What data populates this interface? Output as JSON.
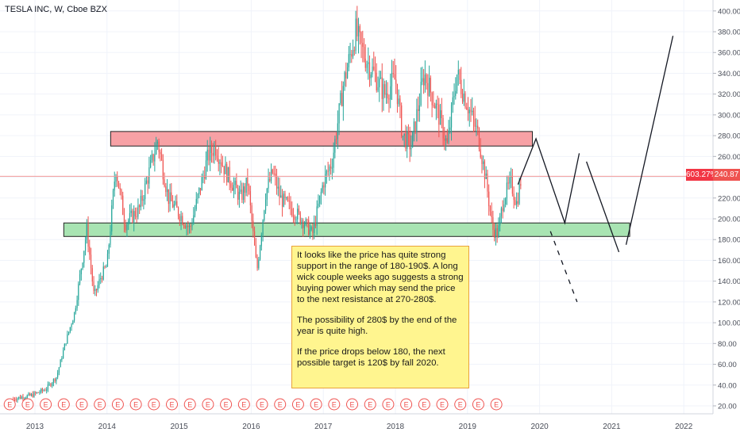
{
  "header": {
    "title": "TESLA INC, W, Cboe BZX"
  },
  "badges": {
    "percent": "603.27%",
    "price": "240.87"
  },
  "note": {
    "p1": "It looks like the price has quite strong support in the range of 180-190$.  A long wick couple weeks ago suggests a strong buying power which may send the price to the next resistance at 270-280$.",
    "p2": "The possibility of 280$ by the end of the year is quite high.",
    "p3": "If the price drops below 180, the next possible target is 120$ by fall 2020."
  },
  "colors": {
    "up": "#26a69a",
    "down": "#ef5350",
    "resistance_fill": "#f7a1a5",
    "support_fill": "#a8e4b2",
    "price_line": "#f29a9a",
    "earnings": "#ef5350",
    "projection": "#131722"
  },
  "chart_data": {
    "type": "candlestick",
    "title": "TESLA INC, W, Cboe BZX",
    "ylim": [
      10,
      410
    ],
    "y_ticks": [
      "400.00",
      "380.00",
      "360.00",
      "340.00",
      "320.00",
      "300.00",
      "280.00",
      "260.00",
      "240.00",
      "220.00",
      "200.00",
      "180.00",
      "160.00",
      "140.00",
      "120.00",
      "100.00",
      "80.00",
      "60.00",
      "40.00",
      "20.00"
    ],
    "x_ticks": [
      "2013",
      "2014",
      "2015",
      "2016",
      "2017",
      "2018",
      "2019",
      "2020",
      "2021",
      "2022"
    ],
    "last_price": 240.87,
    "price_path": [
      [
        2012.7,
        27
      ],
      [
        2012.95,
        30
      ],
      [
        2013.15,
        36
      ],
      [
        2013.3,
        48
      ],
      [
        2013.42,
        80
      ],
      [
        2013.55,
        110
      ],
      [
        2013.72,
        190
      ],
      [
        2013.82,
        125
      ],
      [
        2013.92,
        145
      ],
      [
        2014.0,
        155
      ],
      [
        2014.12,
        250
      ],
      [
        2014.25,
        195
      ],
      [
        2014.45,
        210
      ],
      [
        2014.7,
        275
      ],
      [
        2014.85,
        220
      ],
      [
        2015.0,
        205
      ],
      [
        2015.15,
        190
      ],
      [
        2015.4,
        260
      ],
      [
        2015.5,
        270
      ],
      [
        2015.65,
        245
      ],
      [
        2015.85,
        220
      ],
      [
        2015.95,
        235
      ],
      [
        2016.08,
        150
      ],
      [
        2016.2,
        225
      ],
      [
        2016.3,
        245
      ],
      [
        2016.4,
        220
      ],
      [
        2016.55,
        210
      ],
      [
        2016.7,
        200
      ],
      [
        2016.85,
        185
      ],
      [
        2017.0,
        235
      ],
      [
        2017.12,
        255
      ],
      [
        2017.28,
        330
      ],
      [
        2017.45,
        380
      ],
      [
        2017.55,
        360
      ],
      [
        2017.7,
        340
      ],
      [
        2017.85,
        320
      ],
      [
        2018.0,
        335
      ],
      [
        2018.1,
        280
      ],
      [
        2018.22,
        270
      ],
      [
        2018.4,
        340
      ],
      [
        2018.6,
        300
      ],
      [
        2018.72,
        270
      ],
      [
        2018.85,
        340
      ],
      [
        2019.0,
        310
      ],
      [
        2019.15,
        280
      ],
      [
        2019.25,
        240
      ],
      [
        2019.35,
        190
      ],
      [
        2019.42,
        185
      ],
      [
        2019.5,
        220
      ],
      [
        2019.6,
        235
      ],
      [
        2019.68,
        215
      ],
      [
        2019.75,
        240
      ]
    ],
    "zones": [
      {
        "name": "resistance",
        "x0": 2014.05,
        "x1": 2019.9,
        "y0": 270,
        "y1": 284
      },
      {
        "name": "support",
        "x0": 2013.4,
        "x1": 2021.25,
        "y0": 183,
        "y1": 196
      }
    ],
    "projections": [
      {
        "style": "solid",
        "points": [
          [
            2019.7,
            233
          ],
          [
            2019.95,
            277
          ],
          [
            2020.35,
            196
          ],
          [
            2020.55,
            263
          ]
        ]
      },
      {
        "style": "solid",
        "points": [
          [
            2020.65,
            255
          ],
          [
            2021.1,
            168
          ]
        ]
      },
      {
        "style": "solid",
        "points": [
          [
            2021.2,
            175
          ],
          [
            2021.85,
            376
          ]
        ]
      },
      {
        "style": "dashed",
        "points": [
          [
            2020.15,
            188
          ],
          [
            2020.52,
            120
          ]
        ]
      }
    ],
    "earnings_count": 28,
    "earnings_label": "E",
    "earnings_start": 2012.65,
    "earnings_step": 0.25
  }
}
